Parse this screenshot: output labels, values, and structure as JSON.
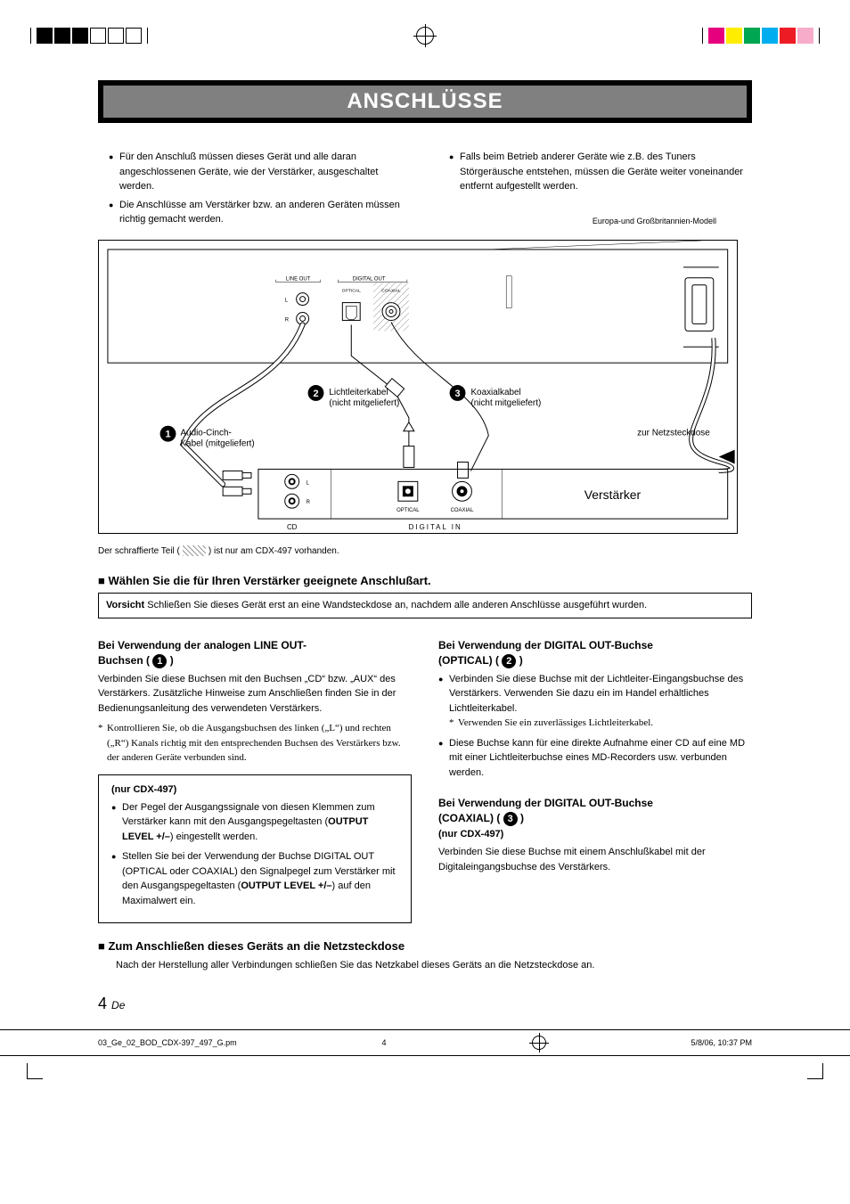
{
  "crop_colors_left": [
    "#000000",
    "#000000",
    "#000000",
    "#ffffff",
    "#ffffff",
    "#ffffff"
  ],
  "crop_colors_right": [
    "#e6007e",
    "#ffed00",
    "#00a651",
    "#00aeef",
    "#ed1c24",
    "#f7adc9"
  ],
  "title": "ANSCHLÜSSE",
  "intro": {
    "left": [
      "Für den Anschluß müssen dieses Gerät und alle daran angeschlossenen Geräte, wie der Verstärker, ausgeschaltet werden.",
      "Die Anschlüsse am Verstärker bzw. an anderen Geräten müssen richtig gemacht werden."
    ],
    "right": [
      "Falls beim Betrieb anderer Geräte wie z.B. des Tuners Störgeräusche entstehen, müssen die Geräte weiter voneinander entfernt aufgestellt werden."
    ]
  },
  "diagram": {
    "top_note": "Europa-und Großbritannien-Modell",
    "device_labels": {
      "line_out": "LINE OUT",
      "digital_out": "DIGITAL OUT",
      "optical": "OPTICAL",
      "coaxial": "COAXIAL",
      "l": "L",
      "r": "R"
    },
    "callouts": {
      "c1_label": "Audio-Cinch-Kabel (mitgeliefert)",
      "c2_label": "Lichtleiterkabel (nicht mitgeliefert)",
      "c3_label": "Koaxialkabel (nicht mitgeliefert)",
      "power_label": "zur Netzsteckdose"
    },
    "amp": {
      "title": "Verstärker",
      "cd": "CD",
      "digital_in": "DIGITAL IN",
      "optical": "OPTICAL",
      "coaxial": "COAXIAL",
      "l": "L",
      "r": "R"
    }
  },
  "hatched_note_pre": "Der schraffierte Teil (",
  "hatched_note_post": ") ist nur am CDX-497 vorhanden.",
  "section1": {
    "heading": "Wählen Sie die für Ihren Verstärker geeignete Anschlußart.",
    "caution_label": "Vorsicht",
    "caution_text": "Schließen Sie dieses Gerät erst an eine Wandsteckdose an, nachdem alle anderen Anschlüsse ausgeführt wurden."
  },
  "left_col": {
    "h1_line1": "Bei Verwendung der analogen LINE OUT-",
    "h1_line2_pre": "Buchsen (",
    "h1_line2_post": ")",
    "p1": "Verbinden Sie diese Buchsen mit den Buchsen „CD“ bzw. „AUX“ des Verstärkers.  Zusätzliche Hinweise zum Anschließen finden Sie in der Bedienungsanleitung des verwendeten Verstärkers.",
    "star1": "Kontrollieren Sie, ob die Ausgangsbuchsen des linken („L“) und rechten („R“) Kanals richtig mit den entsprechenden Buchsen des Verstärkers bzw. der anderen Geräte verbunden sind.",
    "box_h": "(nur CDX-497)",
    "box_items_html": [
      "Der Pegel der Ausgangssignale von diesen Klemmen zum Verstärker kann mit den Ausgangspegeltasten (<b>OUTPUT LEVEL +/–</b>) eingestellt werden.",
      "Stellen Sie bei der Verwendung der Buchse DIGITAL OUT (OPTICAL oder COAXIAL) den Signalpegel zum Verstärker mit den Ausgangspegeltasten (<b>OUTPUT LEVEL +/–</b>) auf den Maximalwert ein."
    ]
  },
  "right_col": {
    "h2_line1": "Bei Verwendung der DIGITAL OUT-Buchse",
    "h2_line2_pre": "(OPTICAL)  (",
    "h2_line2_post": ")",
    "items2": [
      "Verbinden Sie diese Buchse mit der Lichtleiter-Eingangsbuchse des Verstärkers. Verwenden Sie dazu ein im Handel erhältliches Lichtleiterkabel.",
      "Diese Buchse kann für eine direkte Aufnahme einer CD auf eine MD mit einer Lichtleiterbuchse eines MD-Recorders usw. verbunden werden."
    ],
    "item2_star": "Verwenden Sie ein zuverlässiges Lichtleiterkabel.",
    "h3_line1": "Bei Verwendung der DIGITAL OUT-Buchse",
    "h3_line2_pre": "(COAXIAL)   (",
    "h3_line2_post": ")",
    "h3_sub": " (nur CDX-497)",
    "p3": "Verbinden Sie diese Buchse mit einem Anschlußkabel mit der Digitaleingangsbuchse des Verstärkers."
  },
  "section2": {
    "heading": "Zum Anschließen dieses Geräts an die Netzsteckdose",
    "body": "Nach der Herstellung aller Verbindungen schließen Sie das Netzkabel dieses Geräts an die Netzsteckdose an."
  },
  "page_number": "4",
  "page_lang": "De",
  "footer": {
    "file": "03_Ge_02_BOD_CDX-397_497_G.pm",
    "page": "4",
    "date": "5/8/06, 10:37 PM"
  },
  "colors": {
    "title_outer": "#000000",
    "title_inner": "#808080",
    "text": "#000000",
    "background": "#ffffff"
  }
}
